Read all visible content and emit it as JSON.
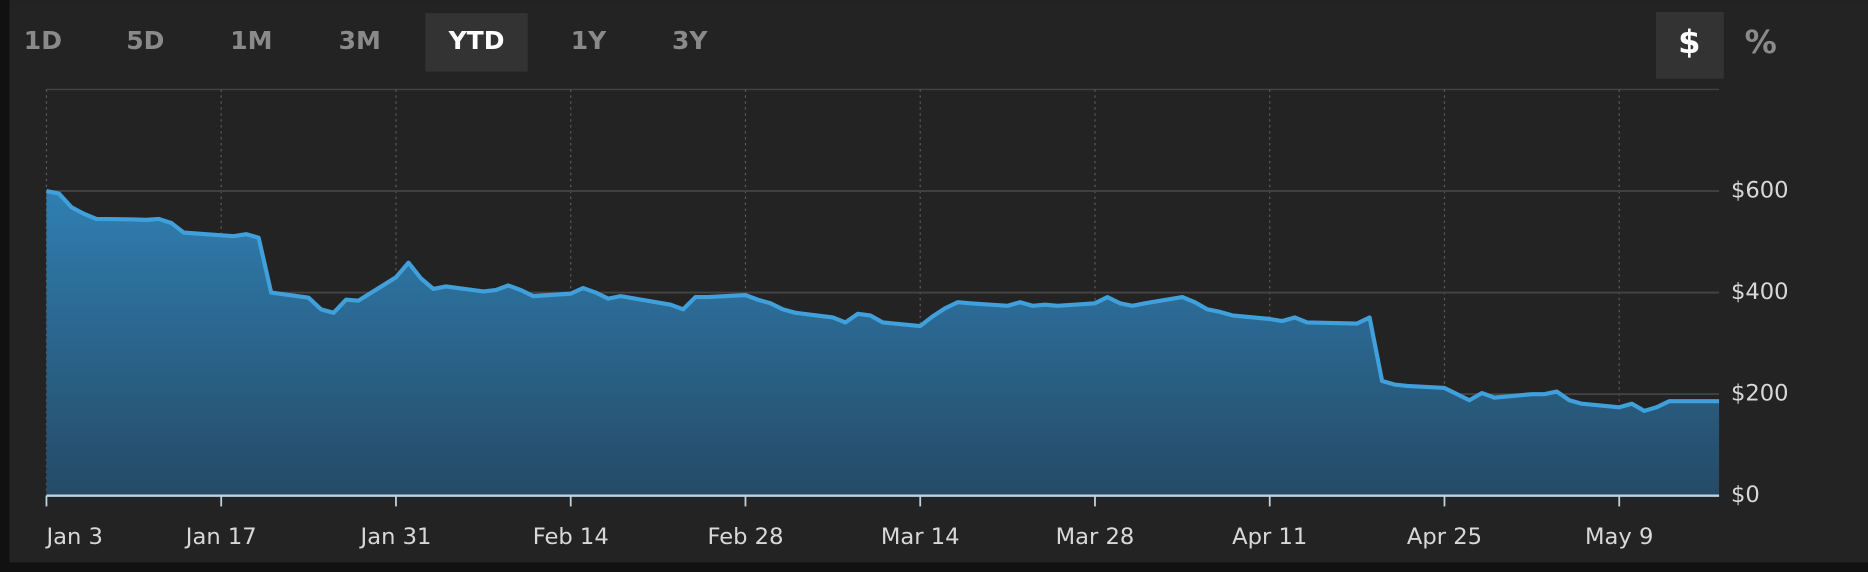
{
  "toolbar": {
    "ranges": [
      {
        "label": "1D",
        "active": false
      },
      {
        "label": "5D",
        "active": false
      },
      {
        "label": "1M",
        "active": false
      },
      {
        "label": "3M",
        "active": false
      },
      {
        "label": "YTD",
        "active": true
      },
      {
        "label": "1Y",
        "active": false
      },
      {
        "label": "3Y",
        "active": false
      }
    ],
    "units": [
      {
        "label": "$",
        "active": true
      },
      {
        "label": "%",
        "active": false
      }
    ]
  },
  "chart_data": {
    "type": "area",
    "color": "#3fa0dc",
    "x": [
      "Jan 3",
      "Jan 4",
      "Jan 5",
      "Jan 6",
      "Jan 7",
      "Jan 10",
      "Jan 11",
      "Jan 12",
      "Jan 13",
      "Jan 14",
      "Jan 18",
      "Jan 19",
      "Jan 20",
      "Jan 21",
      "Jan 24",
      "Jan 25",
      "Jan 26",
      "Jan 27",
      "Jan 28",
      "Jan 31",
      "Feb 1",
      "Feb 2",
      "Feb 3",
      "Feb 4",
      "Feb 7",
      "Feb 8",
      "Feb 9",
      "Feb 10",
      "Feb 11",
      "Feb 14",
      "Feb 15",
      "Feb 16",
      "Feb 17",
      "Feb 18",
      "Feb 22",
      "Feb 23",
      "Feb 24",
      "Feb 25",
      "Feb 28",
      "Mar 1",
      "Mar 2",
      "Mar 3",
      "Mar 4",
      "Mar 7",
      "Mar 8",
      "Mar 9",
      "Mar 10",
      "Mar 11",
      "Mar 14",
      "Mar 15",
      "Mar 16",
      "Mar 17",
      "Mar 18",
      "Mar 21",
      "Mar 22",
      "Mar 23",
      "Mar 24",
      "Mar 25",
      "Mar 28",
      "Mar 29",
      "Mar 30",
      "Mar 31",
      "Apr 1",
      "Apr 4",
      "Apr 5",
      "Apr 6",
      "Apr 7",
      "Apr 8",
      "Apr 11",
      "Apr 12",
      "Apr 13",
      "Apr 14",
      "Apr 18",
      "Apr 19",
      "Apr 20",
      "Apr 21",
      "Apr 22",
      "Apr 25",
      "Apr 26",
      "Apr 27",
      "Apr 28",
      "Apr 29",
      "May 2",
      "May 3",
      "May 4",
      "May 5",
      "May 6",
      "May 9",
      "May 10",
      "May 11",
      "May 12",
      "May 13",
      "May 16",
      "May 17"
    ],
    "values": [
      600,
      595,
      568,
      555,
      545,
      544,
      543,
      545,
      537,
      518,
      511,
      515,
      508,
      400,
      390,
      367,
      360,
      386,
      384,
      430,
      459,
      428,
      407,
      412,
      402,
      405,
      414,
      405,
      393,
      398,
      409,
      400,
      388,
      393,
      376,
      367,
      391,
      391,
      395,
      386,
      379,
      367,
      360,
      351,
      341,
      358,
      355,
      341,
      334,
      353,
      369,
      381,
      379,
      374,
      381,
      374,
      376,
      374,
      379,
      391,
      379,
      374,
      379,
      391,
      381,
      367,
      362,
      355,
      348,
      344,
      351,
      341,
      339,
      351,
      226,
      219,
      216,
      212,
      200,
      188,
      202,
      193,
      200,
      200,
      205,
      188,
      181,
      174,
      181,
      167,
      174,
      186,
      186,
      186
    ],
    "xlim": [
      "Jan 3",
      "May 17"
    ],
    "xticks": [
      "Jan 3",
      "Jan 17",
      "Jan 31",
      "Feb 14",
      "Feb 28",
      "Mar 14",
      "Mar 28",
      "Apr 11",
      "Apr 25",
      "May 9"
    ],
    "ylim": [
      0,
      800
    ],
    "yticks": [
      {
        "value": 0,
        "label": "$0"
      },
      {
        "value": 200,
        "label": "$200"
      },
      {
        "value": 400,
        "label": "$400"
      },
      {
        "value": 600,
        "label": "$600"
      }
    ],
    "grid": true
  }
}
